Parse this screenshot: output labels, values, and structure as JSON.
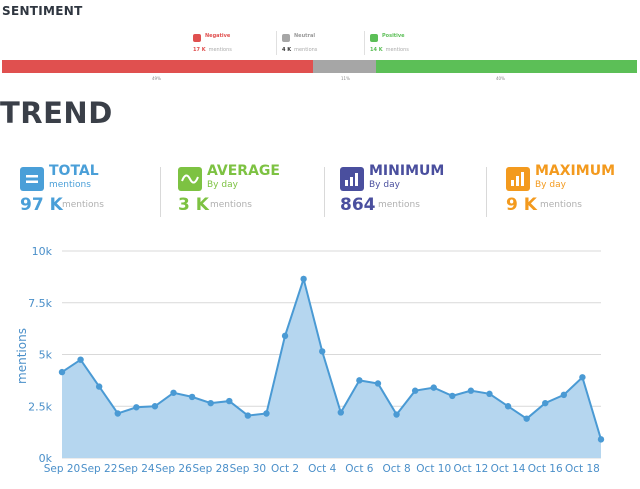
{
  "sentiment": {
    "title": "SENTIMENT",
    "legend": [
      {
        "label": "Negative",
        "count": "17 K",
        "unit": "mentions",
        "color": "#e0504f",
        "icon": "negative-icon"
      },
      {
        "label": "Neutral",
        "count": "4 K",
        "unit": "mentions",
        "color": "#a6a6a6",
        "icon": "neutral-icon"
      },
      {
        "label": "Positive",
        "count": "14 K",
        "unit": "mentions",
        "color": "#5cbf57",
        "icon": "positive-icon"
      }
    ],
    "bar": [
      {
        "label": "Negative",
        "percent": 49,
        "percent_text": "49%",
        "color": "#e0504f"
      },
      {
        "label": "Neutral",
        "percent": 11,
        "percent_text": "11%",
        "color": "#a6a6a6"
      },
      {
        "label": "Positive",
        "percent": 40,
        "percent_text": "40%",
        "color": "#5cbf57"
      }
    ]
  },
  "trend": {
    "title": "TREND",
    "stats": [
      {
        "name": "TOTAL",
        "sub": "mentions",
        "value": "97 K",
        "unit": "mentions",
        "color": "#4a9fd8",
        "icon": "total-icon"
      },
      {
        "name": "AVERAGE",
        "sub": "By day",
        "value": "3 K",
        "unit": "mentions",
        "color": "#7dc242",
        "icon": "average-icon"
      },
      {
        "name": "MINIMUM",
        "sub": "By day",
        "value": "864",
        "unit": "mentions",
        "color": "#4a4f9e",
        "icon": "minimum-icon"
      },
      {
        "name": "MAXIMUM",
        "sub": "By day",
        "value": "9 K",
        "unit": "mentions",
        "color": "#f39a1e",
        "icon": "maximum-icon"
      }
    ]
  },
  "chart_data": {
    "type": "area",
    "ylabel": "mentions",
    "xlabel": "",
    "ylim": [
      0,
      10000
    ],
    "yticks": [
      0,
      2500,
      5000,
      7500,
      10000
    ],
    "ytick_labels": [
      "0k",
      "2.5k",
      "5k",
      "7.5k",
      "10k"
    ],
    "grid": true,
    "x": [
      "Sep 20",
      "Sep 21",
      "Sep 22",
      "Sep 23",
      "Sep 24",
      "Sep 25",
      "Sep 26",
      "Sep 27",
      "Sep 28",
      "Sep 29",
      "Sep 30",
      "Oct 1",
      "Oct 2",
      "Oct 3",
      "Oct 4",
      "Oct 5",
      "Oct 6",
      "Oct 7",
      "Oct 8",
      "Oct 9",
      "Oct 10",
      "Oct 11",
      "Oct 12",
      "Oct 13",
      "Oct 14",
      "Oct 15",
      "Oct 16",
      "Oct 17",
      "Oct 18",
      "Oct 19"
    ],
    "xtick_labels": [
      "Sep 20",
      "Sep 22",
      "Sep 24",
      "Sep 26",
      "Sep 28",
      "Sep 30",
      "Oct 2",
      "Oct 4",
      "Oct 6",
      "Oct 8",
      "Oct 10",
      "Oct 12",
      "Oct 14",
      "Oct 16",
      "Oct 18"
    ],
    "series": [
      {
        "values": [
          4150,
          4750,
          3450,
          2150,
          2450,
          2500,
          3150,
          2950,
          2650,
          2750,
          2050,
          2150,
          5900,
          8650,
          5150,
          2200,
          3750,
          3600,
          2100,
          3250,
          3400,
          3000,
          3250,
          3100,
          2500,
          1900,
          2650,
          3050,
          3900,
          900
        ]
      }
    ],
    "line_color": "#4a9ad4",
    "fill_color": "#b5d6ef"
  }
}
